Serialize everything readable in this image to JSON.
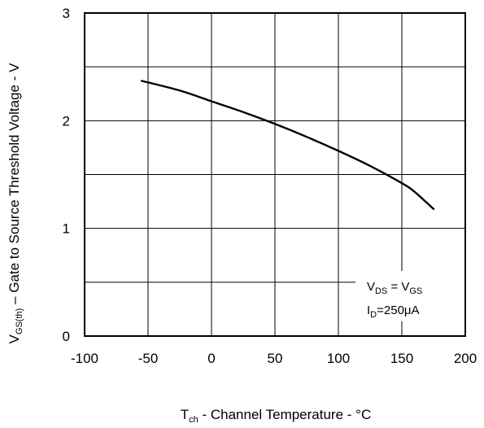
{
  "chart_data": {
    "type": "line",
    "xlabel": {
      "main": "T",
      "sub": "ch",
      "rest": " - Channel Temperature - °C"
    },
    "ylabel": {
      "main": "V",
      "sub": "GS(th)",
      "rest": " – Gate to Source Threshold  Voltage - V"
    },
    "xlim": [
      -100,
      200
    ],
    "ylim": [
      0,
      3
    ],
    "xticks": [
      "-100",
      "-50",
      "0",
      "50",
      "100",
      "150",
      "200"
    ],
    "yticks": [
      "0",
      "1",
      "2",
      "3"
    ],
    "xgrid": [
      -50,
      0,
      50,
      100,
      150
    ],
    "ygrid": [
      0.5,
      1,
      1.5,
      2,
      2.5
    ],
    "grid": true,
    "series": [
      {
        "x": [
          -55,
          -25,
          0,
          25,
          50,
          75,
          100,
          125,
          150,
          160,
          175
        ],
        "y": [
          2.37,
          2.28,
          2.18,
          2.08,
          1.97,
          1.85,
          1.72,
          1.58,
          1.42,
          1.34,
          1.18
        ]
      }
    ],
    "annotation": {
      "line1": {
        "v1": "V",
        "s1": "DS",
        "mid": " = V",
        "s2": "GS"
      },
      "line2": {
        "main": "I",
        "sub": "D",
        "rest": "=250μA"
      }
    }
  }
}
